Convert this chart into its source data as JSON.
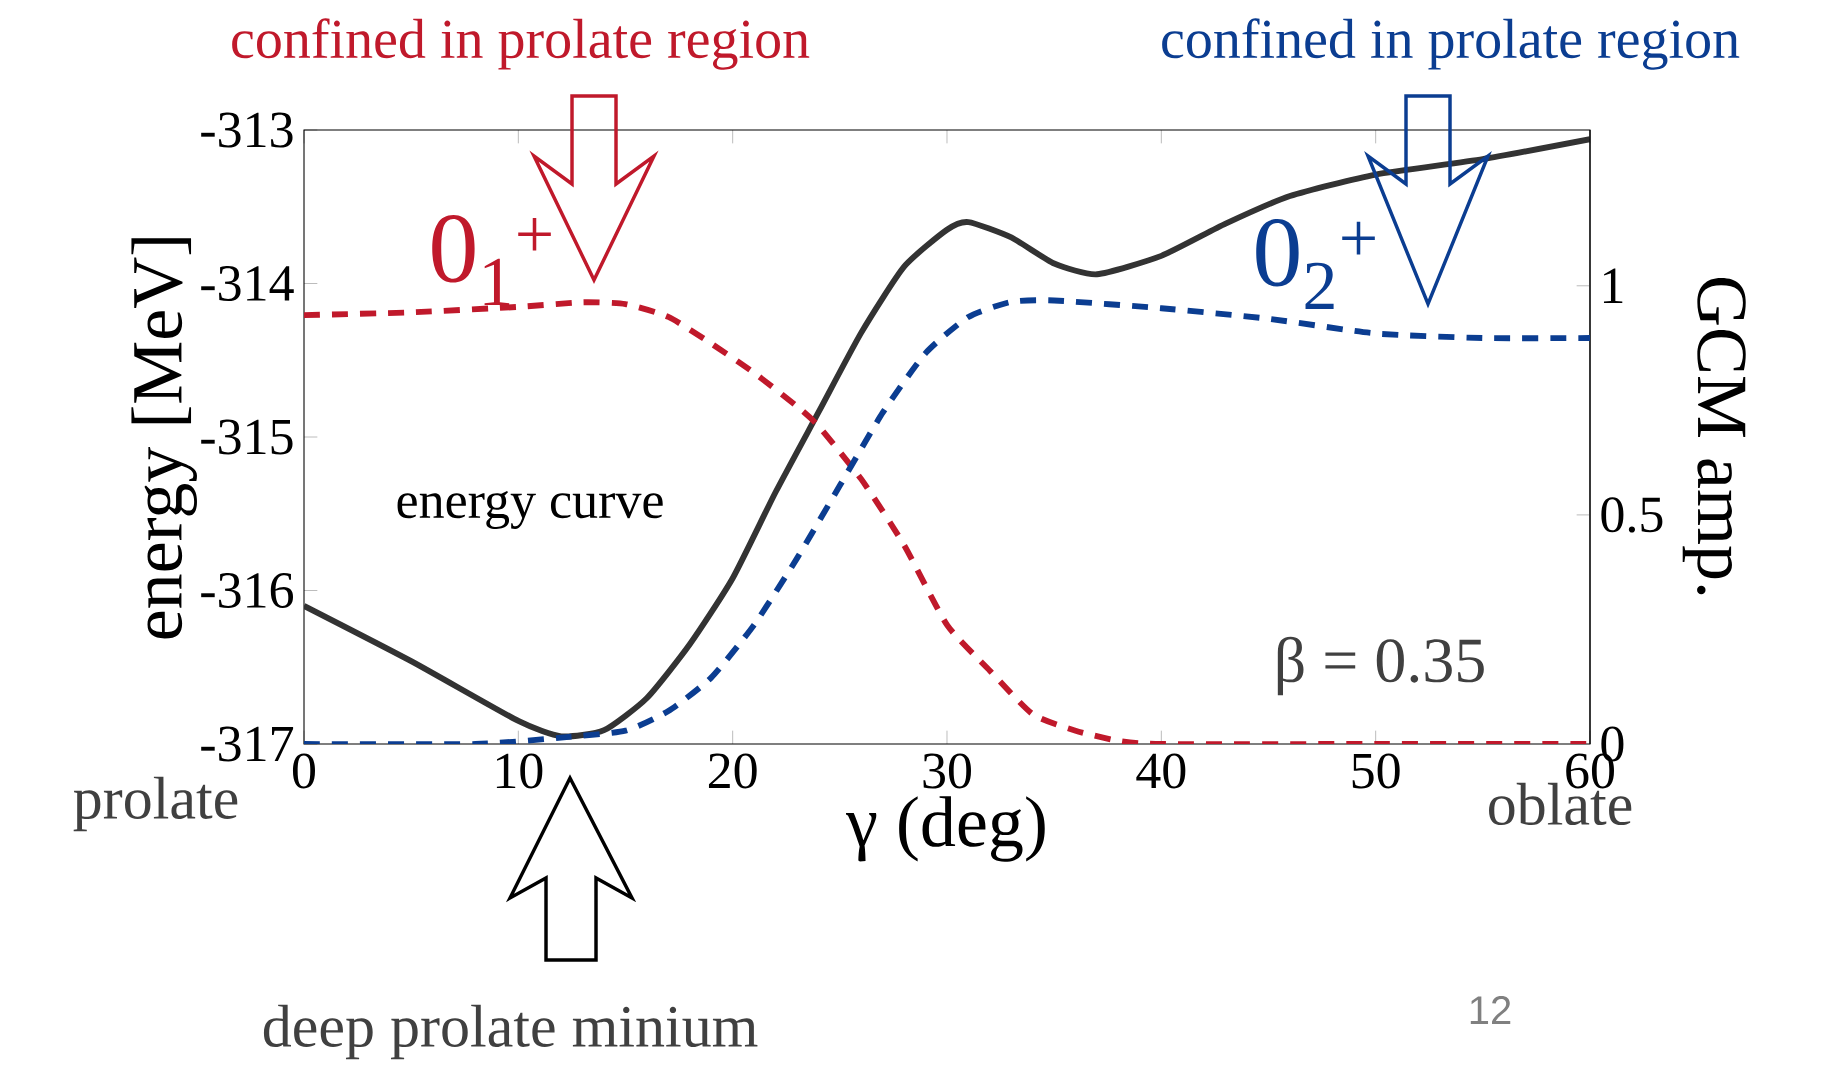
{
  "chart_data": {
    "type": "line",
    "xlabel": "γ (deg)",
    "ylabel": "energy [MeV]",
    "y2label": "GCM amp.",
    "xlim": [
      0,
      60
    ],
    "xticks": [
      0,
      10,
      20,
      30,
      40,
      50,
      60
    ],
    "ylim": [
      -317,
      -313
    ],
    "yticks": [
      -317,
      -316,
      -315,
      -314,
      -313
    ],
    "y2lim": [
      0,
      1.34
    ],
    "y2ticks": [
      0,
      0.5,
      1
    ],
    "grid": false,
    "marker": "none",
    "series": [
      {
        "name": "energy curve",
        "color": "#333333",
        "line_style": "solid",
        "x": [
          0,
          5,
          10,
          12,
          14,
          16,
          18,
          20,
          22,
          24,
          26,
          28,
          30,
          31,
          33,
          35,
          37,
          40,
          43,
          46,
          50,
          55,
          60
        ],
        "values": [
          -316.1,
          -316.46,
          -316.85,
          -316.95,
          -316.91,
          -316.7,
          -316.35,
          -315.92,
          -315.36,
          -314.84,
          -314.32,
          -313.89,
          -313.65,
          -313.6,
          -313.7,
          -313.87,
          -313.94,
          -313.82,
          -313.61,
          -313.43,
          -313.29,
          -313.19,
          -313.06
        ]
      },
      {
        "name": "0$_{1}$$^{+}$",
        "color": "#c0192b",
        "line_style": "dashed",
        "axis": "y2",
        "x": [
          0,
          5,
          10,
          13,
          15,
          17,
          19,
          21,
          23,
          24,
          26,
          28,
          30,
          32,
          34,
          36,
          38,
          40,
          50,
          60
        ],
        "values": [
          0.936,
          0.942,
          0.954,
          0.964,
          0.96,
          0.932,
          0.874,
          0.81,
          0.737,
          0.694,
          0.578,
          0.434,
          0.26,
          0.16,
          0.065,
          0.029,
          0.007,
          0,
          0,
          0
        ]
      },
      {
        "name": "0$_{2}$$^{+}$",
        "color": "#0b3d91",
        "line_style": "dashed",
        "axis": "y2",
        "x": [
          0,
          8,
          12,
          15,
          17,
          19,
          21,
          23,
          25,
          27,
          29,
          31,
          33,
          35,
          40,
          45,
          50,
          55,
          60
        ],
        "values": [
          0,
          0,
          0.014,
          0.029,
          0.072,
          0.145,
          0.26,
          0.405,
          0.564,
          0.723,
          0.853,
          0.932,
          0.965,
          0.968,
          0.951,
          0.928,
          0.896,
          0.886,
          0.886
        ]
      }
    ],
    "annotations": [
      "confined in prolate region",
      "confined in prolate region",
      "β = 0.35",
      "prolate",
      "oblate",
      "deep prolate minium",
      "12"
    ]
  }
}
